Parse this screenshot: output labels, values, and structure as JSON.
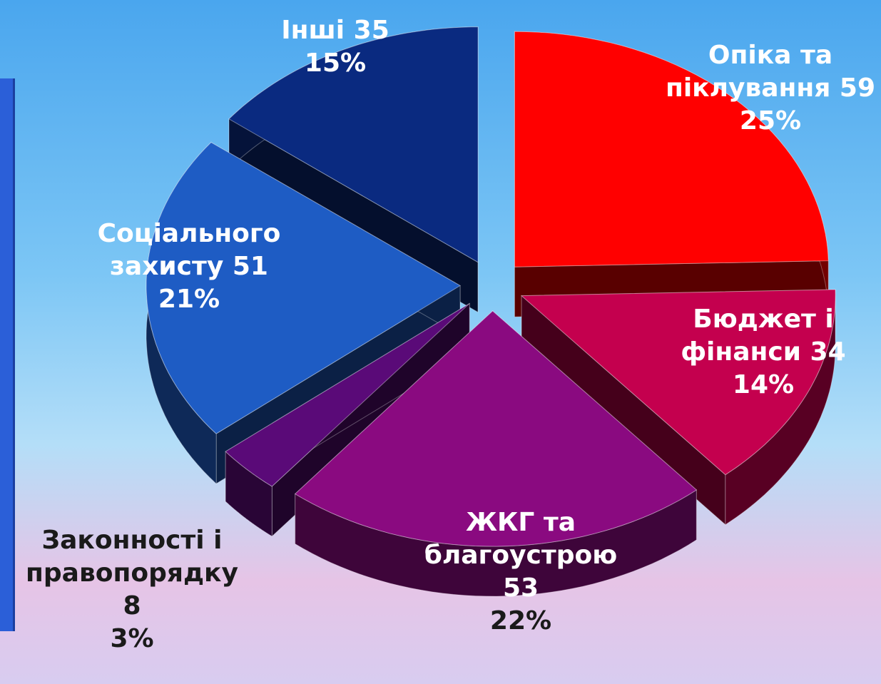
{
  "chart_data": {
    "type": "pie",
    "categories": [
      "Опіка та піклування",
      "Бюджет і фінанси",
      "ЖКГ та благоустрою",
      "Законності і правопорядку",
      "Соціального захисту",
      "Інші"
    ],
    "values": [
      59,
      34,
      53,
      8,
      51,
      35
    ],
    "percent_labels": [
      "25%",
      "14%",
      "22%",
      "3%",
      "21%",
      "15%"
    ],
    "colors": [
      "#ff0000",
      "#c4004e",
      "#8a0a80",
      "#5a0a78",
      "#1e5cc4",
      "#0a2a80"
    ]
  }
}
